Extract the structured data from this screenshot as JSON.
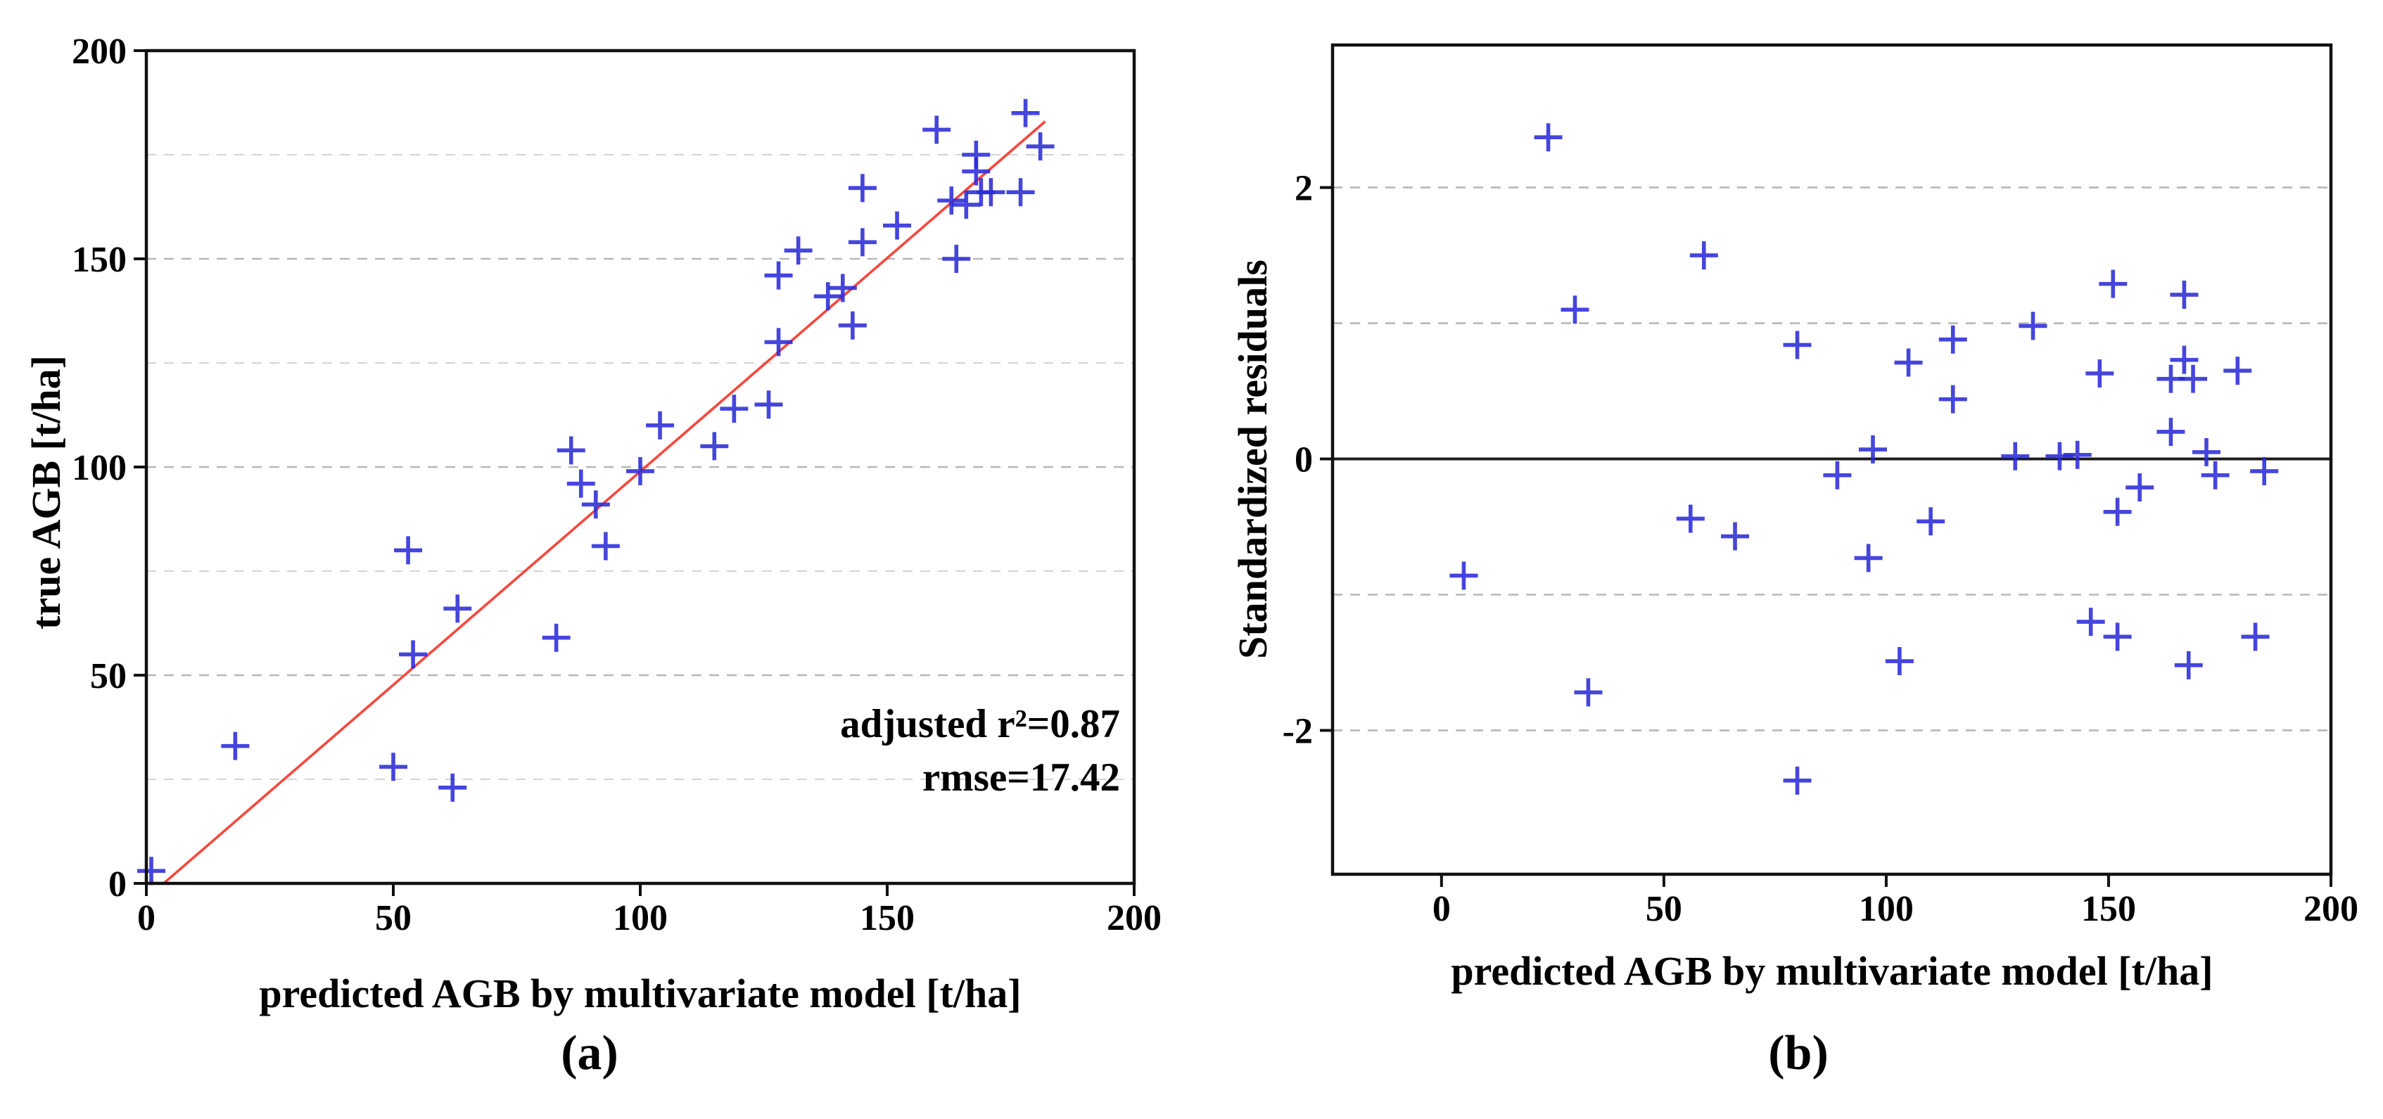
{
  "figure": {
    "caption_a": "(a)",
    "caption_b": "(b)",
    "marker_color": "#2b2bd8",
    "fit_line_color": "#f8473c",
    "grid_major_color": "#b7b7b7",
    "grid_minor_color": "#d4d4d4",
    "box_color": "#111111"
  },
  "chart_data": [
    {
      "type": "scatter",
      "panel": "a",
      "title": "",
      "xlabel": "predicted AGB by multivariate model [t/ha]",
      "ylabel": "true AGB [t/ha]",
      "xlim": [
        0,
        200
      ],
      "ylim": [
        0,
        200
      ],
      "xticks": [
        0,
        50,
        100,
        150,
        200
      ],
      "yticks": [
        0,
        50,
        100,
        150,
        200
      ],
      "grid_y_dashed": [
        25,
        50,
        75,
        100,
        125,
        150,
        175
      ],
      "grid_y_solid": [],
      "legend": null,
      "annotation": {
        "line1": "adjusted r²=0.87",
        "line2": "rmse=17.42"
      },
      "fit_line": {
        "x1": 3.5,
        "y1": 0,
        "x2": 182,
        "y2": 183
      },
      "marker": "plus",
      "points": [
        [
          1,
          3
        ],
        [
          18,
          33
        ],
        [
          50,
          28
        ],
        [
          54,
          55
        ],
        [
          62,
          23
        ],
        [
          63,
          66
        ],
        [
          83,
          59
        ],
        [
          53,
          80
        ],
        [
          86,
          104
        ],
        [
          88,
          96
        ],
        [
          91,
          91
        ],
        [
          93,
          81
        ],
        [
          100,
          99
        ],
        [
          104,
          110
        ],
        [
          115,
          105
        ],
        [
          119,
          114
        ],
        [
          126,
          115
        ],
        [
          128,
          130
        ],
        [
          128,
          146
        ],
        [
          132,
          152
        ],
        [
          138,
          141
        ],
        [
          141,
          143
        ],
        [
          143,
          134
        ],
        [
          145,
          154
        ],
        [
          145,
          167
        ],
        [
          152,
          158
        ],
        [
          164,
          150
        ],
        [
          163,
          164
        ],
        [
          166,
          163
        ],
        [
          169,
          166
        ],
        [
          171,
          166
        ],
        [
          168,
          175
        ],
        [
          168,
          171
        ],
        [
          177,
          166
        ],
        [
          160,
          181
        ],
        [
          178,
          185
        ],
        [
          181,
          177
        ]
      ]
    },
    {
      "type": "scatter",
      "panel": "b",
      "title": "",
      "xlabel": "predicted AGB by multivariate model [t/ha]",
      "ylabel": "Standardized residuals",
      "xlim": [
        -24.5,
        200
      ],
      "ylim": [
        -3.06,
        3.05
      ],
      "xticks": [
        0,
        50,
        100,
        150,
        200
      ],
      "yticks": [
        -2,
        0,
        2
      ],
      "grid_y_dashed": [
        -2,
        -1,
        1,
        2
      ],
      "grid_y_solid": [
        0
      ],
      "legend": null,
      "annotation": null,
      "fit_line": null,
      "marker": "plus",
      "points": [
        [
          24,
          2.37
        ],
        [
          59,
          1.5
        ],
        [
          30,
          1.1
        ],
        [
          80,
          0.84
        ],
        [
          105,
          0.71
        ],
        [
          115,
          0.88
        ],
        [
          115,
          0.44
        ],
        [
          133,
          0.98
        ],
        [
          148,
          0.63
        ],
        [
          151,
          1.29
        ],
        [
          167,
          1.21
        ],
        [
          167,
          0.73
        ],
        [
          164,
          0.59
        ],
        [
          169,
          0.59
        ],
        [
          179,
          0.65
        ],
        [
          97,
          0.07
        ],
        [
          129,
          0.02
        ],
        [
          139,
          0.02
        ],
        [
          143,
          0.03
        ],
        [
          164,
          0.2
        ],
        [
          172,
          0.05
        ],
        [
          89,
          -0.12
        ],
        [
          96,
          -0.73
        ],
        [
          110,
          -0.46
        ],
        [
          103,
          -1.49
        ],
        [
          146,
          -1.2
        ],
        [
          152,
          -1.31
        ],
        [
          168,
          -1.52
        ],
        [
          183,
          -1.31
        ],
        [
          152,
          -0.39
        ],
        [
          157,
          -0.21
        ],
        [
          174,
          -0.12
        ],
        [
          185,
          -0.09
        ],
        [
          5,
          -0.86
        ],
        [
          56,
          -0.44
        ],
        [
          66,
          -0.57
        ],
        [
          33,
          -1.72
        ],
        [
          80,
          -2.37
        ]
      ]
    }
  ]
}
